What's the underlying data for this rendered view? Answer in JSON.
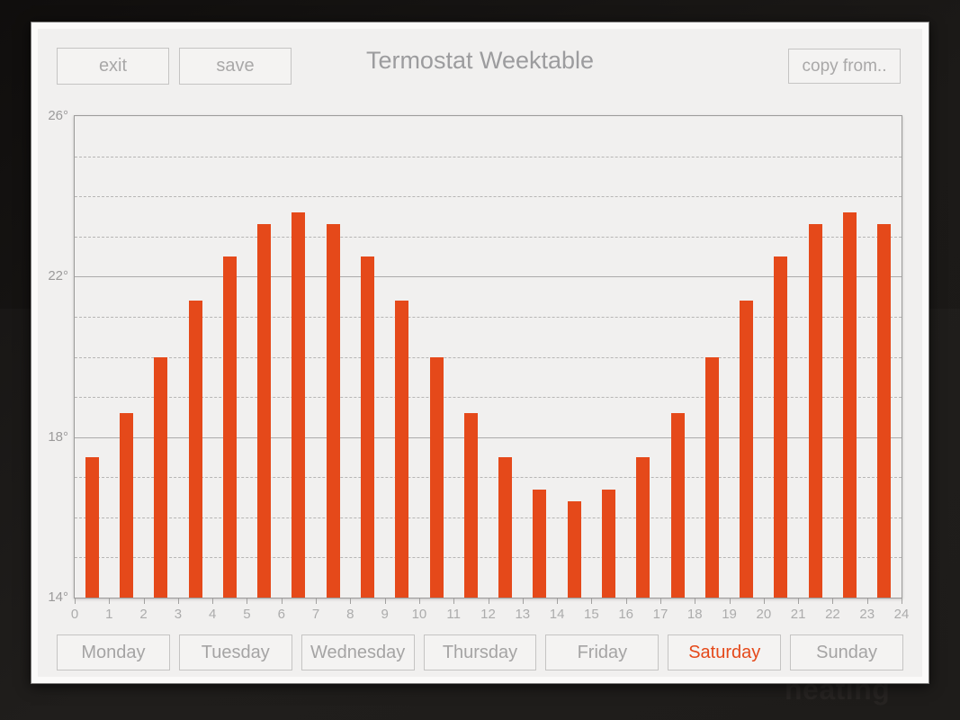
{
  "window": {
    "title": "Termostat Weektable"
  },
  "toolbar": {
    "exit_label": "exit",
    "save_label": "save",
    "copy_from_label": "copy from.."
  },
  "days": {
    "items": [
      {
        "label": "Monday"
      },
      {
        "label": "Tuesday"
      },
      {
        "label": "Wednesday"
      },
      {
        "label": "Thursday"
      },
      {
        "label": "Friday"
      },
      {
        "label": "Saturday"
      },
      {
        "label": "Sunday"
      }
    ],
    "selected": "Saturday",
    "selected_index": 5
  },
  "background": {
    "watermark": "heating"
  },
  "colors": {
    "accent": "#e5491a",
    "bar": "#e5491a",
    "chart_bg": "#f1f0ef",
    "button_border": "#c5c4c3",
    "text_gray": "#a5a4a4",
    "title_gray": "#9c9c9e"
  },
  "chart_data": {
    "type": "bar",
    "title": "Termostat Weektable",
    "x": [
      0,
      1,
      2,
      3,
      4,
      5,
      6,
      7,
      8,
      9,
      10,
      11,
      12,
      13,
      14,
      15,
      16,
      17,
      18,
      19,
      20,
      21,
      22,
      23
    ],
    "values": [
      17.5,
      18.6,
      20.0,
      21.4,
      22.5,
      23.3,
      23.6,
      23.3,
      22.5,
      21.4,
      20.0,
      18.6,
      17.5,
      16.7,
      16.4,
      16.7,
      17.5,
      18.6,
      20.0,
      21.4,
      22.5,
      23.3,
      23.6,
      23.3
    ],
    "unit": "°",
    "ylim": [
      14,
      26
    ],
    "y_tick_labels": [
      "26°",
      "22°",
      "18°",
      "14°"
    ],
    "x_tick_labels": [
      "0",
      "1",
      "2",
      "3",
      "4",
      "5",
      "6",
      "7",
      "8",
      "9",
      "10",
      "11",
      "12",
      "13",
      "14",
      "15",
      "16",
      "17",
      "18",
      "19",
      "20",
      "21",
      "22",
      "23",
      "24"
    ],
    "grid": {
      "solid_at": [
        18,
        22
      ],
      "dashed_step": 1
    },
    "bar_color": "#e5491a",
    "legend": null
  }
}
